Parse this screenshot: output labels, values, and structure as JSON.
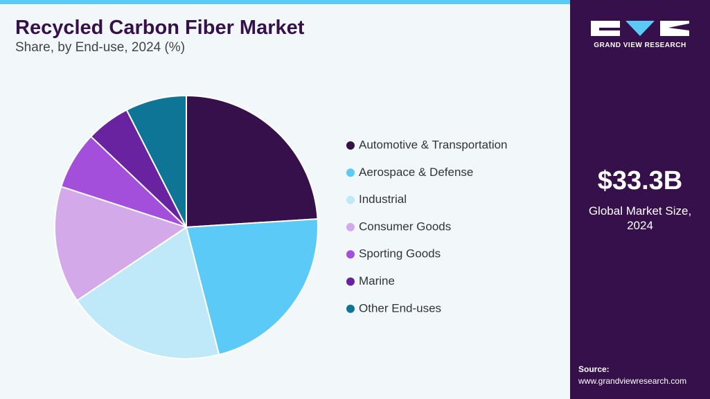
{
  "chart_data": {
    "type": "pie",
    "title": "Recycled Carbon Fiber Market",
    "subtitle": "Share, by End-use, 2024 (%)",
    "categories": [
      "Automotive & Transportation",
      "Aerospace & Defense",
      "Industrial",
      "Consumer Goods",
      "Sporting Goods",
      "Marine",
      "Other End-uses"
    ],
    "values": [
      24,
      22,
      19.6,
      14.4,
      7.1,
      5.4,
      7.5
    ],
    "colors": [
      "#36104a",
      "#5bcaf6",
      "#bfe9f9",
      "#d3a9ea",
      "#a44fdc",
      "#6a23a0",
      "#0f7597"
    ]
  },
  "brand": {
    "name": "GRAND VIEW RESEARCH"
  },
  "sidebar": {
    "market_size": "$33.3B",
    "market_size_label": "Global Market Size, 2024",
    "source_label": "Source:",
    "source_url": "www.grandviewresearch.com"
  }
}
